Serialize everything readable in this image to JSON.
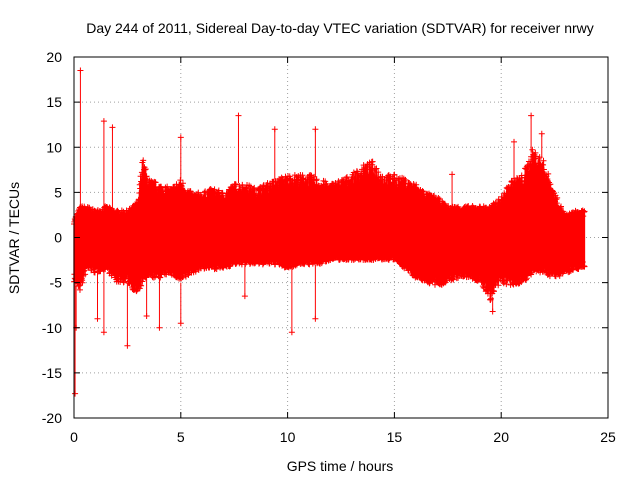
{
  "chart_data": {
    "type": "scatter",
    "title": "Day 244 of 2011, Sidereal Day-to-day VTEC variation (SDTVAR) for receiver nrwy",
    "xlabel": "GPS time / hours",
    "ylabel": "SDTVAR / TECUs",
    "xlim": [
      0,
      25
    ],
    "ylim": [
      -20,
      20
    ],
    "x_ticks": [
      0,
      5,
      10,
      15,
      20,
      25
    ],
    "y_ticks": [
      -20,
      -15,
      -10,
      -5,
      0,
      5,
      10,
      15,
      20
    ],
    "grid": true,
    "marker": "+",
    "color": "#ff0000",
    "series": [
      {
        "name": "SDTVAR",
        "envelope": {
          "x": [
            0.0,
            0.3,
            0.6,
            1.0,
            1.5,
            2.0,
            2.5,
            3.0,
            3.2,
            3.5,
            4.0,
            4.5,
            5.0,
            5.5,
            6.0,
            6.5,
            7.0,
            7.5,
            8.0,
            8.5,
            9.0,
            9.5,
            10.0,
            10.5,
            11.0,
            11.5,
            12.0,
            12.5,
            13.0,
            13.5,
            14.0,
            14.5,
            15.0,
            15.5,
            16.0,
            16.5,
            17.0,
            17.5,
            18.0,
            18.5,
            19.0,
            19.5,
            20.0,
            20.5,
            21.0,
            21.5,
            22.0,
            22.5,
            23.0,
            23.5,
            23.9
          ],
          "upper": [
            2.0,
            3.5,
            3.5,
            3.0,
            3.5,
            3.0,
            3.0,
            4.0,
            9.0,
            6.5,
            6.0,
            5.5,
            6.5,
            5.0,
            5.0,
            5.5,
            5.0,
            6.0,
            6.0,
            5.5,
            6.0,
            6.5,
            7.0,
            7.0,
            7.0,
            6.5,
            6.0,
            6.5,
            7.0,
            8.0,
            8.5,
            7.0,
            7.0,
            6.5,
            6.0,
            5.0,
            4.5,
            3.5,
            3.5,
            3.5,
            3.5,
            3.5,
            4.5,
            6.5,
            7.0,
            10.0,
            8.5,
            5.0,
            2.5,
            3.0,
            3.0
          ],
          "lower": [
            -5.0,
            -6.0,
            -3.5,
            -4.0,
            -3.5,
            -5.0,
            -5.0,
            -6.5,
            -5.0,
            -4.5,
            -4.5,
            -4.0,
            -5.0,
            -4.0,
            -3.5,
            -3.5,
            -3.5,
            -3.0,
            -3.0,
            -3.0,
            -3.0,
            -3.0,
            -3.5,
            -3.0,
            -3.0,
            -3.0,
            -2.5,
            -2.5,
            -2.5,
            -2.5,
            -2.5,
            -2.5,
            -2.5,
            -3.5,
            -4.5,
            -5.0,
            -5.5,
            -5.0,
            -4.5,
            -4.5,
            -5.0,
            -7.0,
            -5.0,
            -5.5,
            -5.0,
            -4.0,
            -4.0,
            -4.5,
            -4.0,
            -3.5,
            -3.5
          ]
        },
        "spikes": [
          {
            "x": 0.05,
            "y": -17.3
          },
          {
            "x": 0.3,
            "y": 18.5
          },
          {
            "x": 0.1,
            "y": -10.0
          },
          {
            "x": 1.4,
            "y": 12.9
          },
          {
            "x": 1.8,
            "y": 12.2
          },
          {
            "x": 1.1,
            "y": -9.0
          },
          {
            "x": 1.4,
            "y": -10.5
          },
          {
            "x": 2.5,
            "y": -12.0
          },
          {
            "x": 3.4,
            "y": -8.7
          },
          {
            "x": 4.0,
            "y": -10.0
          },
          {
            "x": 5.0,
            "y": 11.1
          },
          {
            "x": 5.0,
            "y": -9.5
          },
          {
            "x": 7.7,
            "y": 13.5
          },
          {
            "x": 8.0,
            "y": -6.5
          },
          {
            "x": 9.4,
            "y": 12.0
          },
          {
            "x": 10.2,
            "y": -10.5
          },
          {
            "x": 11.3,
            "y": 12.0
          },
          {
            "x": 11.3,
            "y": -9.0
          },
          {
            "x": 17.7,
            "y": 7.0
          },
          {
            "x": 19.6,
            "y": -8.2
          },
          {
            "x": 20.6,
            "y": 10.6
          },
          {
            "x": 21.4,
            "y": 13.5
          },
          {
            "x": 21.9,
            "y": 11.5
          }
        ]
      }
    ]
  }
}
